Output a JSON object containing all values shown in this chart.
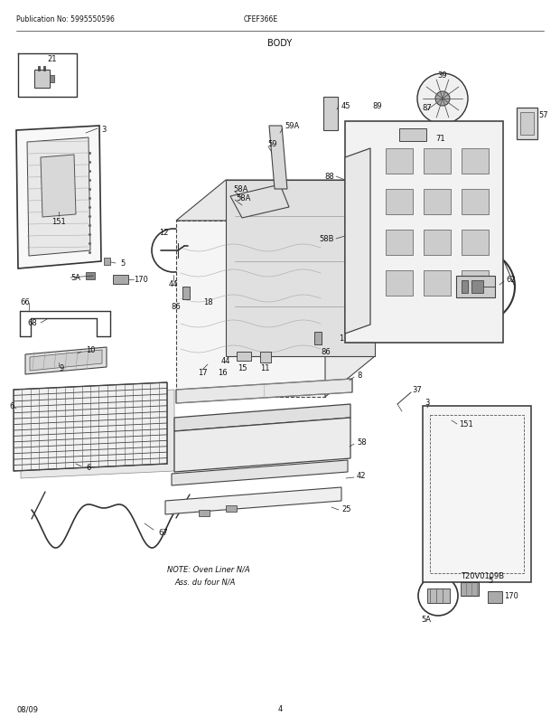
{
  "title": "BODY",
  "pub_no": "Publication No: 5995550596",
  "model": "CFEF366E",
  "date": "08/09",
  "page": "4",
  "diagram_note": "NOTE: Oven Liner N/A\nAss. du four N/A",
  "ref_code": "T20V0109B",
  "bg_color": "#ffffff",
  "line_color": "#222222",
  "text_color": "#111111",
  "fig_width": 6.2,
  "fig_height": 8.03,
  "dpi": 100
}
